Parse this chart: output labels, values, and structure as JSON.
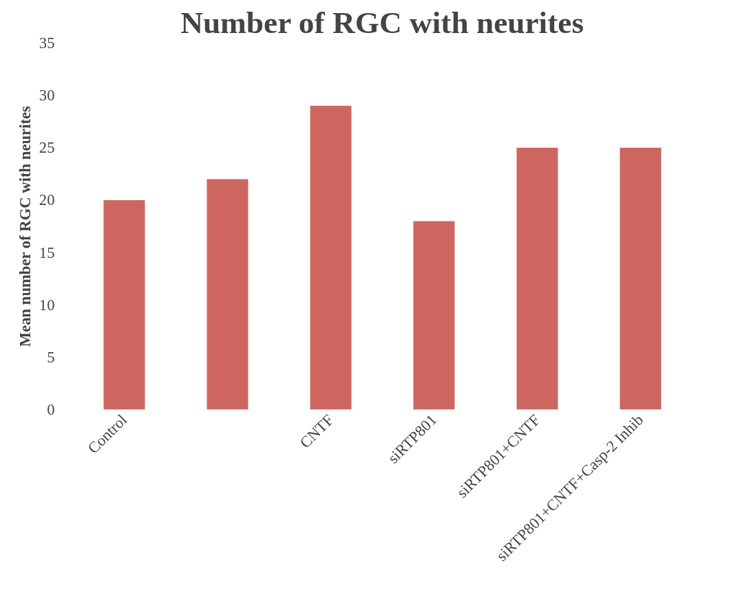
{
  "chart_data": {
    "type": "bar",
    "title": "Number of RGC with neurites",
    "ylabel": "Mean number of RGC with neurites",
    "categories": [
      "Control",
      null,
      "CNTF",
      "siRTP801",
      "siRTP801+CNTF",
      "siRTP801+CNTF+Casp-2 Inhib"
    ],
    "values": [
      20,
      22,
      29,
      18,
      25,
      25
    ],
    "color": "#cd665f",
    "ylim": [
      0,
      35
    ],
    "yticks": [
      0,
      5,
      10,
      15,
      20,
      25,
      30,
      35
    ],
    "grid": false
  }
}
